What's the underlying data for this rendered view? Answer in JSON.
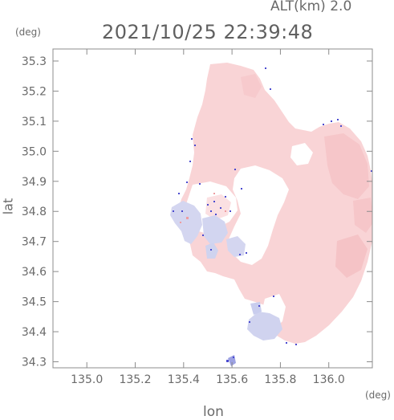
{
  "header": {
    "altitude_label": "ALT(km)",
    "altitude_value": "2.0",
    "timestamp": "2021/10/25 22:39:48"
  },
  "axes": {
    "y_unit": "(deg)",
    "x_unit": "(deg)",
    "y_label": "lat",
    "x_label": "lon"
  },
  "chart_data": {
    "type": "heatmap",
    "xlabel": "lon",
    "ylabel": "lat",
    "xlim": [
      134.86,
      136.18
    ],
    "ylim": [
      34.28,
      35.34
    ],
    "x_ticks": [
      135.0,
      135.2,
      135.4,
      135.6,
      135.8,
      136.0
    ],
    "x_tick_labels": [
      "135.0",
      "135.2",
      "135.4",
      "135.6",
      "135.8",
      "136.0"
    ],
    "y_ticks": [
      34.3,
      34.4,
      34.5,
      34.6,
      34.7,
      34.8,
      34.9,
      35.0,
      35.1,
      35.2,
      35.3
    ],
    "y_tick_labels": [
      "34.3",
      "34.4",
      "34.5",
      "34.6",
      "34.7",
      "34.8",
      "34.9",
      "35.0",
      "35.1",
      "35.2",
      "35.3"
    ],
    "grid": false,
    "colors": {
      "frame": "#8c8c8c",
      "positive_field": "#f9d2d4",
      "positive_strong": "#f5c0c3",
      "negative_field": "#cfd2ee",
      "negative_strong": "#9a9fe0",
      "edge_noise": "#4a4ad0"
    }
  }
}
